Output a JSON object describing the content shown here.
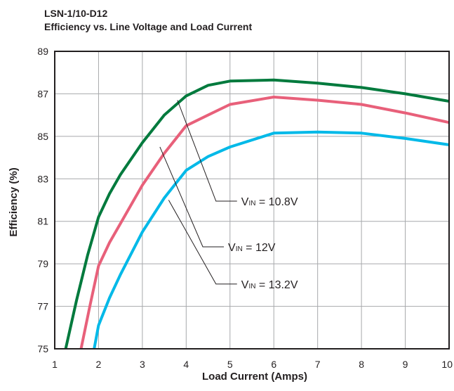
{
  "chart_data": {
    "type": "line",
    "title": "LSN-1/10-D12",
    "subtitle": "Efficiency vs. Line Voltage and Load Current",
    "xlabel": "Load Current (Amps)",
    "ylabel": "Efficiency (%)",
    "xlim": [
      1,
      10
    ],
    "ylim": [
      75,
      89
    ],
    "xticks": [
      "1",
      "2",
      "3",
      "4",
      "5",
      "6",
      "7",
      "8",
      "9",
      "10"
    ],
    "yticks": [
      "75",
      "77",
      "79",
      "81",
      "83",
      "85",
      "87",
      "89"
    ],
    "grid": true,
    "series": [
      {
        "name": "10.8V",
        "label_prefix": "V",
        "label_sub": "IN",
        "label_text": "= 10.8V",
        "color": "#007a3d",
        "x": [
          1.25,
          1.5,
          1.75,
          2.0,
          2.25,
          2.5,
          3.0,
          3.5,
          4.0,
          4.5,
          5.0,
          6.0,
          7.0,
          8.0,
          9.0,
          10.0
        ],
        "y": [
          75.0,
          77.3,
          79.4,
          81.2,
          82.3,
          83.2,
          84.7,
          86.0,
          86.9,
          87.4,
          87.6,
          87.65,
          87.5,
          87.3,
          87.0,
          86.65
        ]
      },
      {
        "name": "12V",
        "label_prefix": "V",
        "label_sub": "IN",
        "label_text": "= 12V",
        "color": "#e8607a",
        "x": [
          1.6,
          1.8,
          2.0,
          2.25,
          2.5,
          3.0,
          3.5,
          4.0,
          4.5,
          5.0,
          6.0,
          7.0,
          8.0,
          9.0,
          10.0
        ],
        "y": [
          75.0,
          77.0,
          78.9,
          80.0,
          80.9,
          82.7,
          84.2,
          85.5,
          86.0,
          86.5,
          86.85,
          86.7,
          86.5,
          86.1,
          85.65
        ]
      },
      {
        "name": "13.2V",
        "label_prefix": "V",
        "label_sub": "IN",
        "label_text": "= 13.2V",
        "color": "#00b9e8",
        "x": [
          1.9,
          2.0,
          2.25,
          2.5,
          3.0,
          3.5,
          4.0,
          4.5,
          5.0,
          6.0,
          7.0,
          8.0,
          9.0,
          10.0
        ],
        "y": [
          75.0,
          76.1,
          77.4,
          78.5,
          80.5,
          82.1,
          83.4,
          84.05,
          84.5,
          85.15,
          85.2,
          85.15,
          84.9,
          84.6
        ]
      }
    ],
    "annotations": [
      {
        "series": 0,
        "point": [
          3.8,
          86.7
        ],
        "label_anchor": [
          5.0,
          81.95
        ]
      },
      {
        "series": 1,
        "point": [
          3.4,
          84.5
        ],
        "label_anchor": [
          4.7,
          79.8
        ]
      },
      {
        "series": 2,
        "point": [
          3.6,
          82.0
        ],
        "label_anchor": [
          5.0,
          78.05
        ]
      }
    ]
  }
}
